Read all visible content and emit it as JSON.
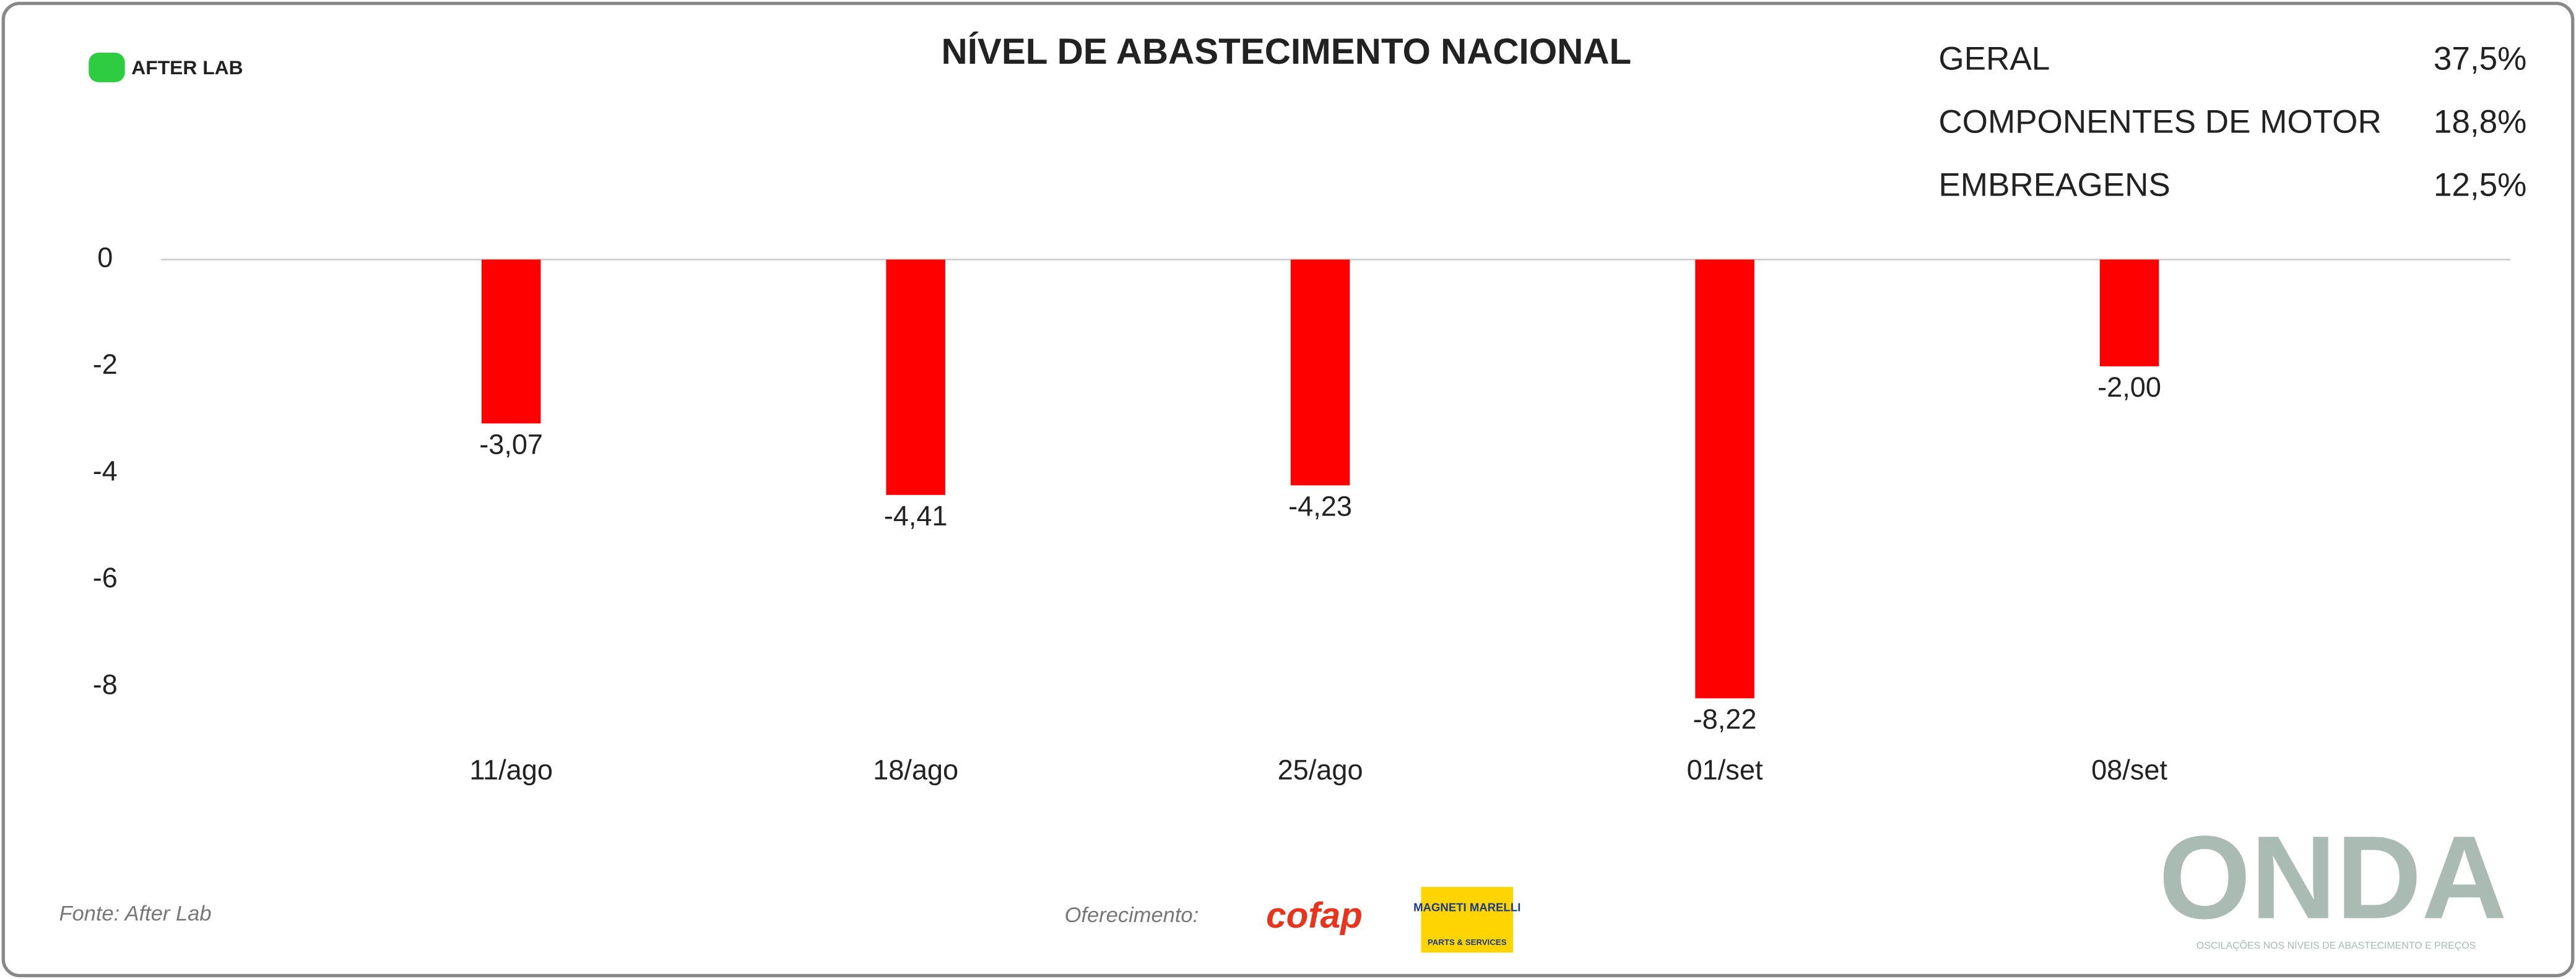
{
  "brand": {
    "name": "AFTER LAB"
  },
  "summary": [
    {
      "label": "GERAL",
      "value": "37,5%"
    },
    {
      "label": "COMPONENTES DE MOTOR",
      "value": "18,8%"
    },
    {
      "label": "EMBREAGENS",
      "value": "12,5%"
    }
  ],
  "chart_data": {
    "type": "bar",
    "title": "NÍVEL DE ABASTECIMENTO NACIONAL",
    "categories": [
      "11/ago",
      "18/ago",
      "25/ago",
      "01/set",
      "08/set"
    ],
    "values": [
      -3.07,
      -4.41,
      -4.23,
      -8.22,
      -2.0
    ],
    "value_labels": [
      "-3,07",
      "-4,41",
      "-4,23",
      "-8,22",
      "-2,00"
    ],
    "color": "#ff0000",
    "ylim": [
      -9,
      0
    ],
    "yticks": [
      0,
      -2,
      -4,
      -6,
      -8
    ],
    "zero_line": true
  },
  "footer": {
    "source": "Fonte: After Lab",
    "sponsor_label": "Oferecimento:",
    "sponsors": [
      "cofap",
      "MAGNETI MARELLI",
      "PARTS & SERVICES"
    ],
    "logo": "ONDA",
    "logo_tagline": "OSCILAÇÕES NOS NÍVEIS DE ABASTECIMENTO E PREÇOS"
  }
}
